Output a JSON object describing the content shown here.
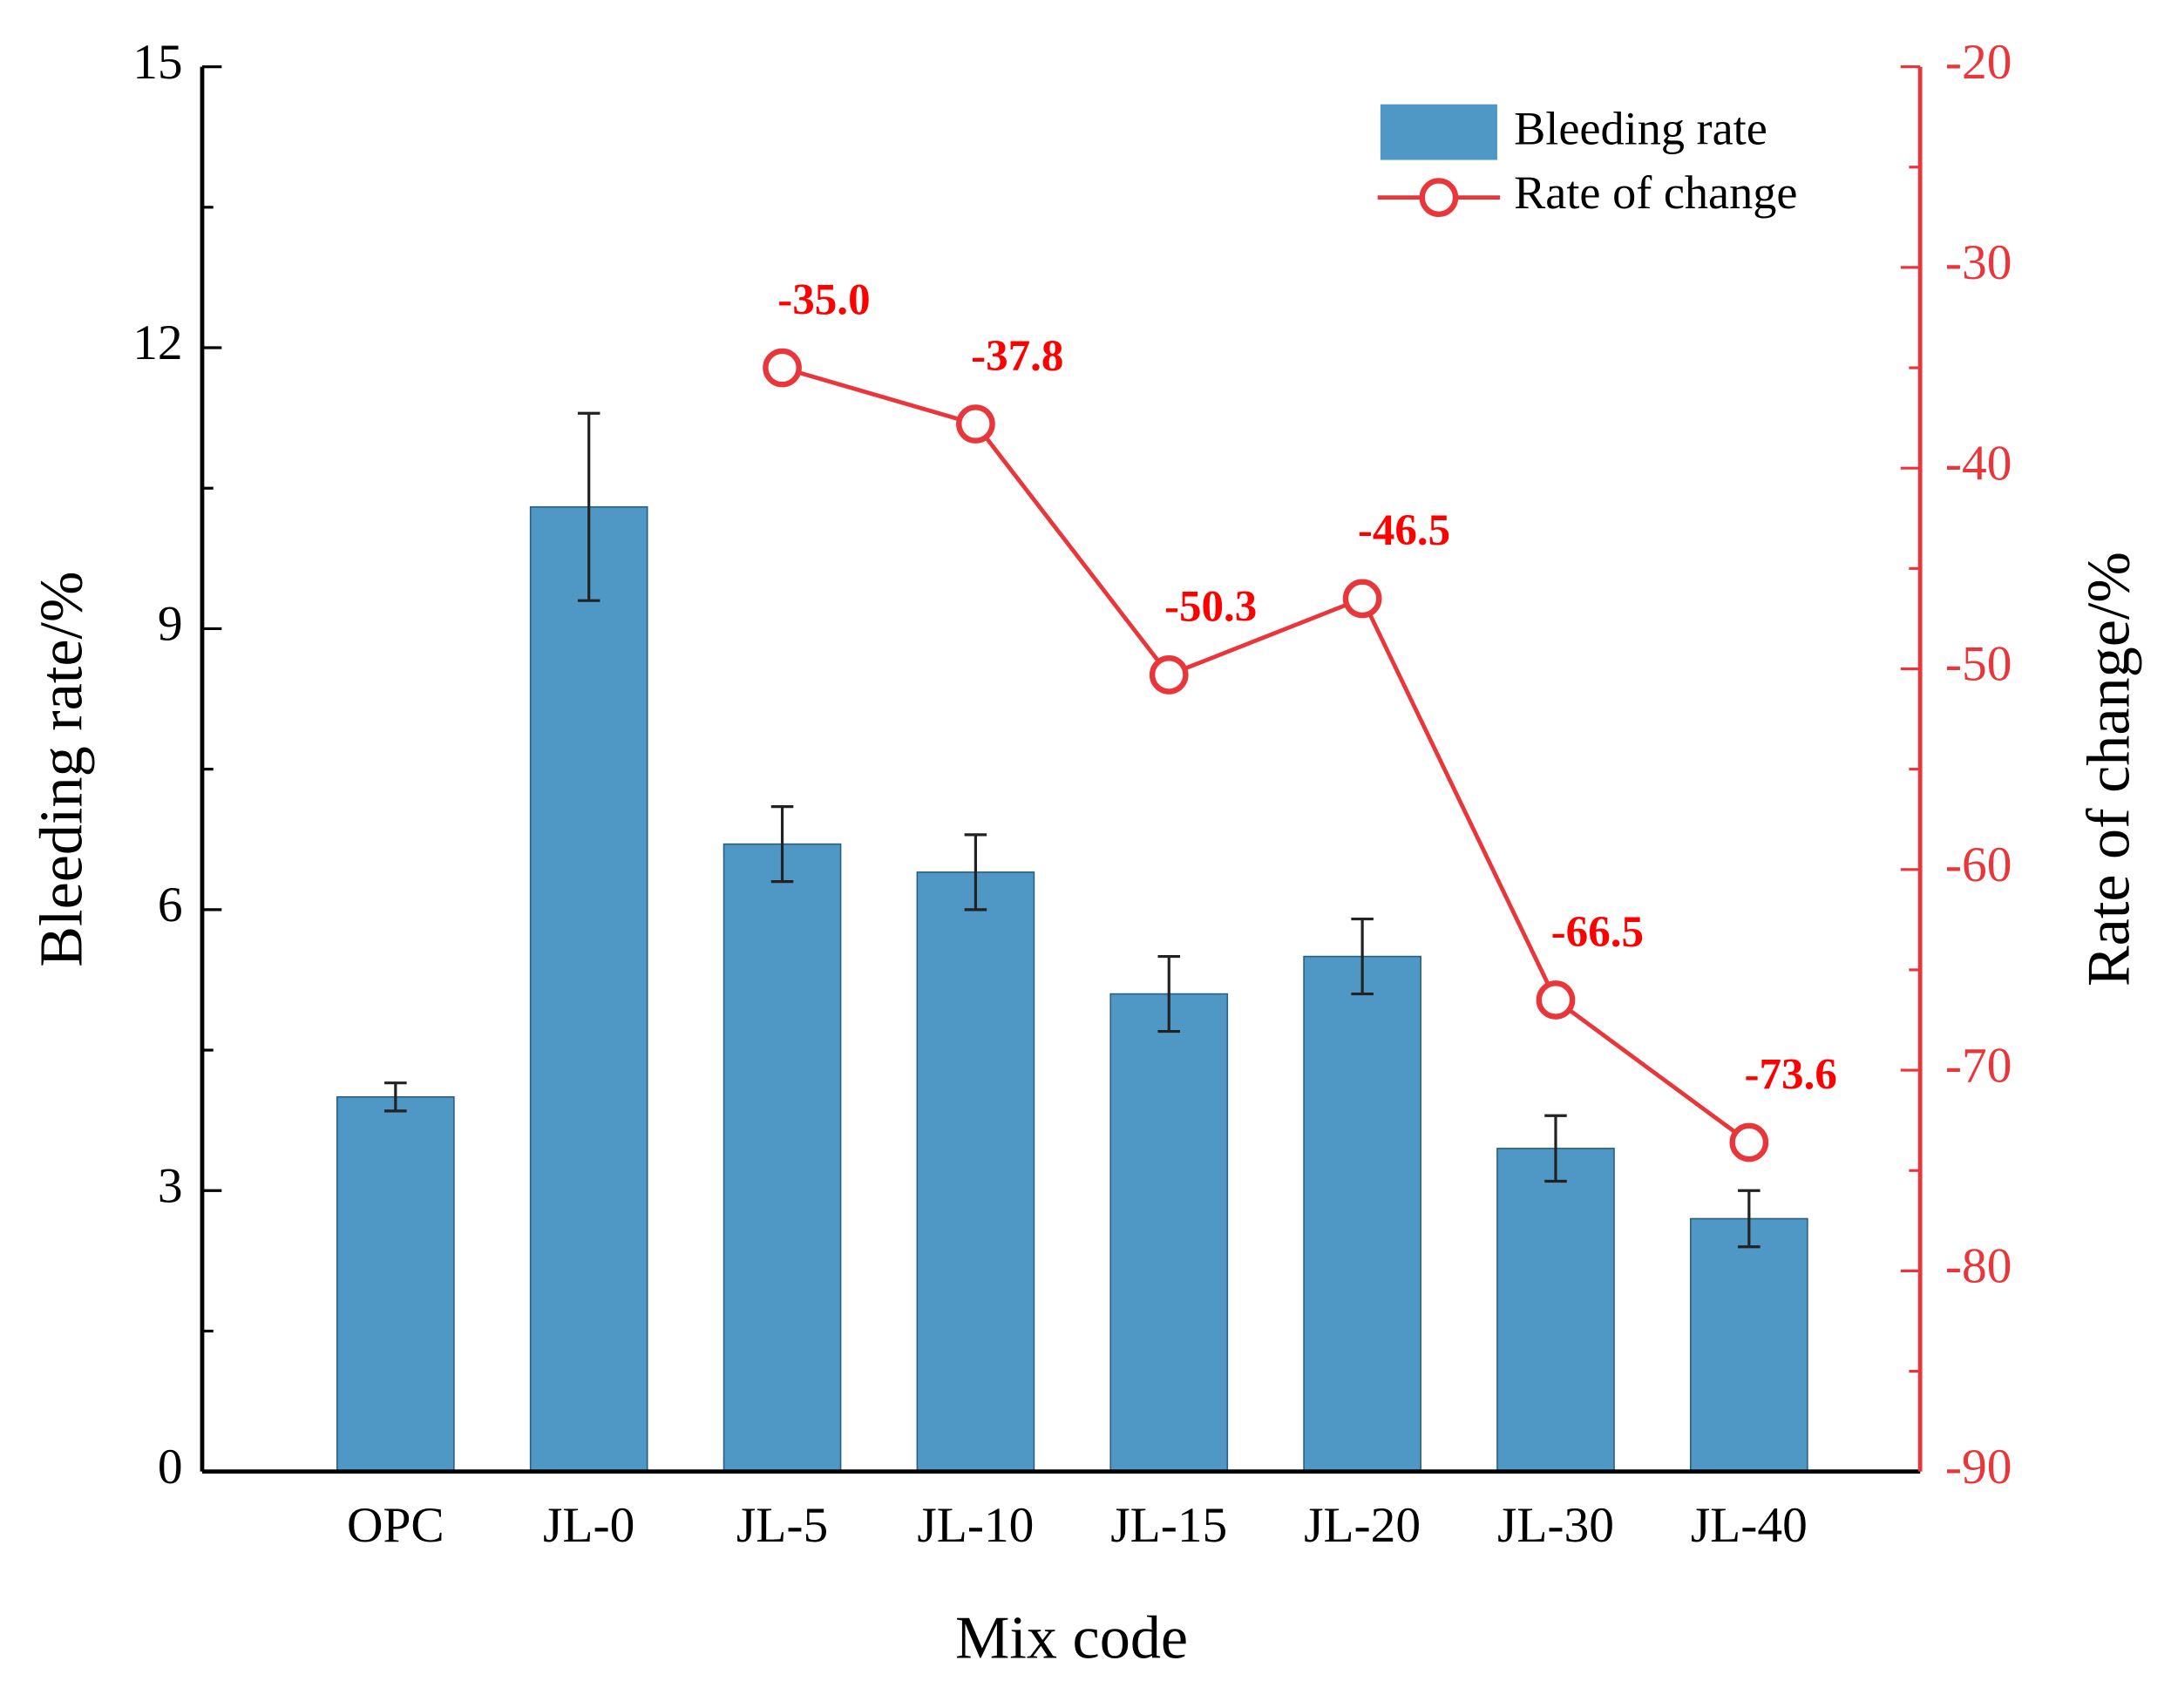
{
  "chart_data": {
    "type": "bar_line",
    "x_label": "Mix code",
    "y_label": "Bleeding rate/%",
    "y2_label": "Rate of change/%",
    "categories": [
      "OPC",
      "JL-0",
      "JL-5",
      "JL-10",
      "JL-15",
      "JL-20",
      "JL-30",
      "JL-40"
    ],
    "ylim": [
      0,
      15
    ],
    "yticks": [
      0,
      3,
      6,
      9,
      12,
      15
    ],
    "y2lim": [
      -90,
      -20
    ],
    "y2ticks": [
      -90,
      -80,
      -70,
      -60,
      -50,
      -40,
      -30,
      -20
    ],
    "series": [
      {
        "name": "Bleeding rate",
        "type": "bar",
        "color": "#4f97c5",
        "values": [
          4.0,
          10.3,
          6.7,
          6.4,
          5.1,
          5.5,
          3.45,
          2.7
        ],
        "errors": [
          0.15,
          1.0,
          0.4,
          0.4,
          0.4,
          0.4,
          0.35,
          0.3
        ]
      },
      {
        "name": "Rate of change",
        "type": "line",
        "axis": "y2",
        "color": "#e8363a",
        "values": [
          null,
          null,
          -35.0,
          -37.8,
          -50.3,
          -46.5,
          -66.5,
          -73.6
        ],
        "value_labels": [
          null,
          null,
          "-35.0",
          "-37.8",
          "-50.3",
          "-46.5",
          "-66.5",
          "-73.6"
        ]
      }
    ],
    "legend": "upper right"
  }
}
